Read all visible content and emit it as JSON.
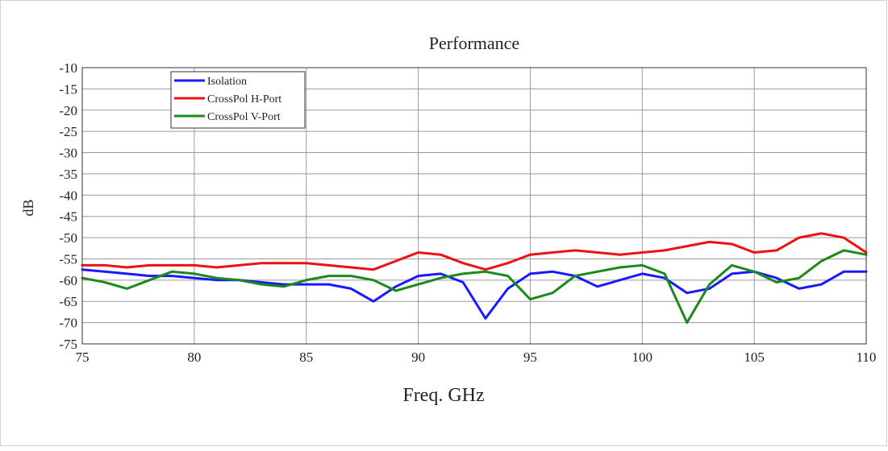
{
  "chart_data": {
    "type": "line",
    "title": "Performance",
    "xlabel": "Freq. GHz",
    "ylabel": "dB",
    "xlim": [
      75,
      110
    ],
    "ylim": [
      -75,
      -10
    ],
    "xticks": [
      75,
      80,
      85,
      90,
      95,
      100,
      105,
      110
    ],
    "yticks": [
      -10,
      -15,
      -20,
      -25,
      -30,
      -35,
      -40,
      -45,
      -50,
      -55,
      -60,
      -65,
      -70,
      -75
    ],
    "grid": true,
    "legend_position": "top-left",
    "series": [
      {
        "name": "Isolation",
        "color": "#1a1aff",
        "x": [
          75,
          76,
          77,
          78,
          79,
          80,
          81,
          82,
          83,
          84,
          85,
          86,
          87,
          88,
          89,
          90,
          91,
          92,
          93,
          94,
          95,
          96,
          97,
          98,
          99,
          100,
          101,
          102,
          103,
          104,
          105,
          106,
          107,
          108,
          109,
          110
        ],
        "y": [
          -57.5,
          -58,
          -58.5,
          -59,
          -59,
          -59.5,
          -60,
          -60,
          -60.5,
          -61,
          -61,
          -61,
          -62,
          -65,
          -61.5,
          -59,
          -58.5,
          -60.5,
          -69,
          -62,
          -58.5,
          -58,
          -59,
          -61.5,
          -60,
          -58.5,
          -59.5,
          -63,
          -62,
          -58.5,
          -58,
          -59.5,
          -62,
          -61,
          -58,
          -58
        ]
      },
      {
        "name": "CrossPol H-Port",
        "color": "#ee1111",
        "x": [
          75,
          76,
          77,
          78,
          79,
          80,
          81,
          82,
          83,
          84,
          85,
          86,
          87,
          88,
          89,
          90,
          91,
          92,
          93,
          94,
          95,
          96,
          97,
          98,
          99,
          100,
          101,
          102,
          103,
          104,
          105,
          106,
          107,
          108,
          109,
          110
        ],
        "y": [
          -56.5,
          -56.5,
          -57,
          -56.5,
          -56.5,
          -56.5,
          -57,
          -56.5,
          -56,
          -56,
          -56,
          -56.5,
          -57,
          -57.5,
          -55.5,
          -53.5,
          -54,
          -56,
          -57.5,
          -56,
          -54,
          -53.5,
          -53,
          -53.5,
          -54,
          -53.5,
          -53,
          -52,
          -51,
          -51.5,
          -53.5,
          -53,
          -50,
          -49,
          -50,
          -53.5
        ]
      },
      {
        "name": "CrossPol V-Port",
        "color": "#1a8a1a",
        "x": [
          75,
          76,
          77,
          78,
          79,
          80,
          81,
          82,
          83,
          84,
          85,
          86,
          87,
          88,
          89,
          90,
          91,
          92,
          93,
          94,
          95,
          96,
          97,
          98,
          99,
          100,
          101,
          102,
          103,
          104,
          105,
          106,
          107,
          108,
          109,
          110
        ],
        "y": [
          -59.5,
          -60.5,
          -62,
          -60,
          -58,
          -58.5,
          -59.5,
          -60,
          -61,
          -61.5,
          -60,
          -59,
          -59,
          -60,
          -62.5,
          -61,
          -59.5,
          -58.5,
          -58,
          -59,
          -64.5,
          -63,
          -59,
          -58,
          -57,
          -56.5,
          -58.5,
          -70,
          -61,
          -56.5,
          -58,
          -60.5,
          -59.5,
          -55.5,
          -53,
          -54
        ]
      }
    ]
  }
}
